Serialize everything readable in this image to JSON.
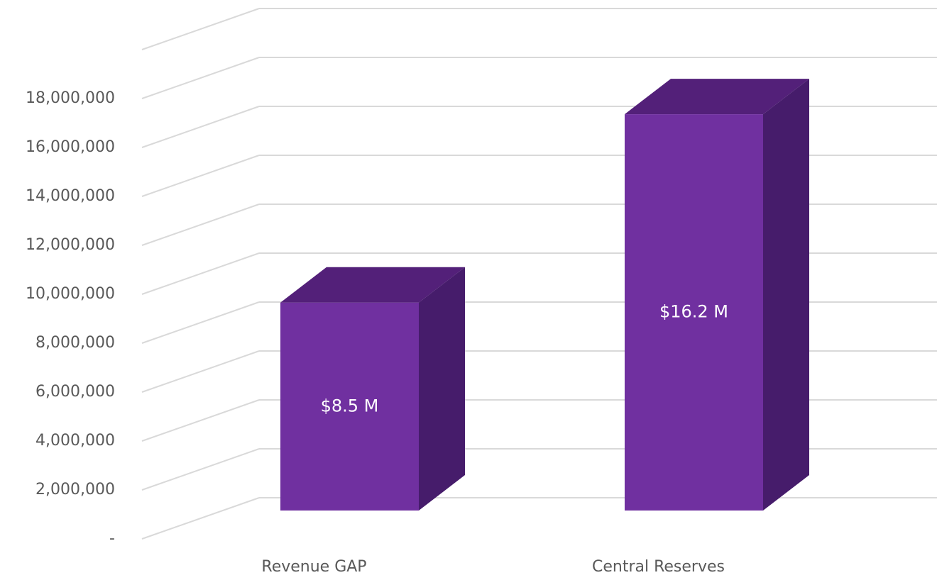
{
  "chart_data": {
    "type": "bar3d",
    "categories": [
      "Revenue GAP",
      "Central Reserves"
    ],
    "values": [
      8500000,
      16200000
    ],
    "value_labels": [
      "$8.5 M",
      "$16.2 M"
    ],
    "color": "#7030a0",
    "ylim": [
      0,
      20000000
    ],
    "yticks": [
      {
        "value": 0,
        "label": "-"
      },
      {
        "value": 2000000,
        "label": "2,000,000"
      },
      {
        "value": 4000000,
        "label": "4,000,000"
      },
      {
        "value": 6000000,
        "label": "6,000,000"
      },
      {
        "value": 8000000,
        "label": "8,000,000"
      },
      {
        "value": 10000000,
        "label": "10,000,000"
      },
      {
        "value": 12000000,
        "label": "12,000,000"
      },
      {
        "value": 14000000,
        "label": "14,000,000"
      },
      {
        "value": 16000000,
        "label": "16,000,000"
      },
      {
        "value": 18000000,
        "label": "18,000,000"
      }
    ],
    "grid": true
  }
}
